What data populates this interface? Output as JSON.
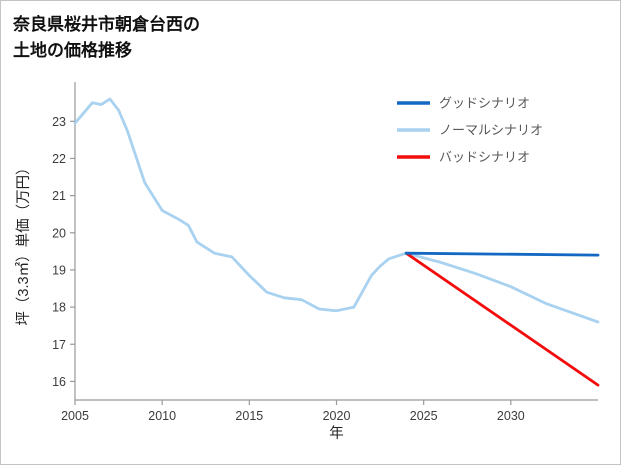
{
  "header": {
    "title_line1": "奈良県桜井市朝倉台西の",
    "title_line2": "土地の価格推移"
  },
  "chart_data": {
    "type": "line",
    "title": "奈良県桜井市朝倉台西の土地の価格推移",
    "xlabel": "年",
    "ylabel": "坪（3.3㎡）単価（万円）",
    "xlim": [
      2005,
      2035
    ],
    "ylim": [
      15.5,
      23.95
    ],
    "xticks": [
      2005,
      2010,
      2015,
      2020,
      2025,
      2030
    ],
    "yticks": [
      16,
      17,
      18,
      19,
      20,
      21,
      22,
      23
    ],
    "grid": false,
    "legend_position": "top-right",
    "axis_color": "#9a9a9a",
    "tick_label_color": "#3c3c3c",
    "axis_label_color": "#222222",
    "legend_text_color": "#595959",
    "series": [
      {
        "name": "グッドシナリオ",
        "color": "#1268c3",
        "x": [
          2024,
          2035
        ],
        "y": [
          19.45,
          19.4
        ]
      },
      {
        "name": "ノーマルシナリオ",
        "color": "#a8d2f0",
        "x": [
          2005,
          2006,
          2006.5,
          2007,
          2007.5,
          2008,
          2009,
          2010,
          2011,
          2011.5,
          2012,
          2013,
          2014,
          2015,
          2016,
          2017,
          2018,
          2019,
          2020,
          2021,
          2022,
          2022.5,
          2023,
          2024,
          2026,
          2028,
          2030,
          2032,
          2035
        ],
        "y": [
          22.95,
          23.5,
          23.45,
          23.6,
          23.3,
          22.75,
          21.35,
          20.6,
          20.35,
          20.2,
          19.75,
          19.45,
          19.35,
          18.85,
          18.4,
          18.25,
          18.2,
          17.95,
          17.9,
          18.0,
          18.85,
          19.1,
          19.3,
          19.45,
          19.2,
          18.9,
          18.55,
          18.1,
          17.6
        ]
      },
      {
        "name": "バッドシナリオ",
        "color": "#f20c0c",
        "x": [
          2024,
          2035
        ],
        "y": [
          19.45,
          15.9
        ]
      }
    ]
  }
}
